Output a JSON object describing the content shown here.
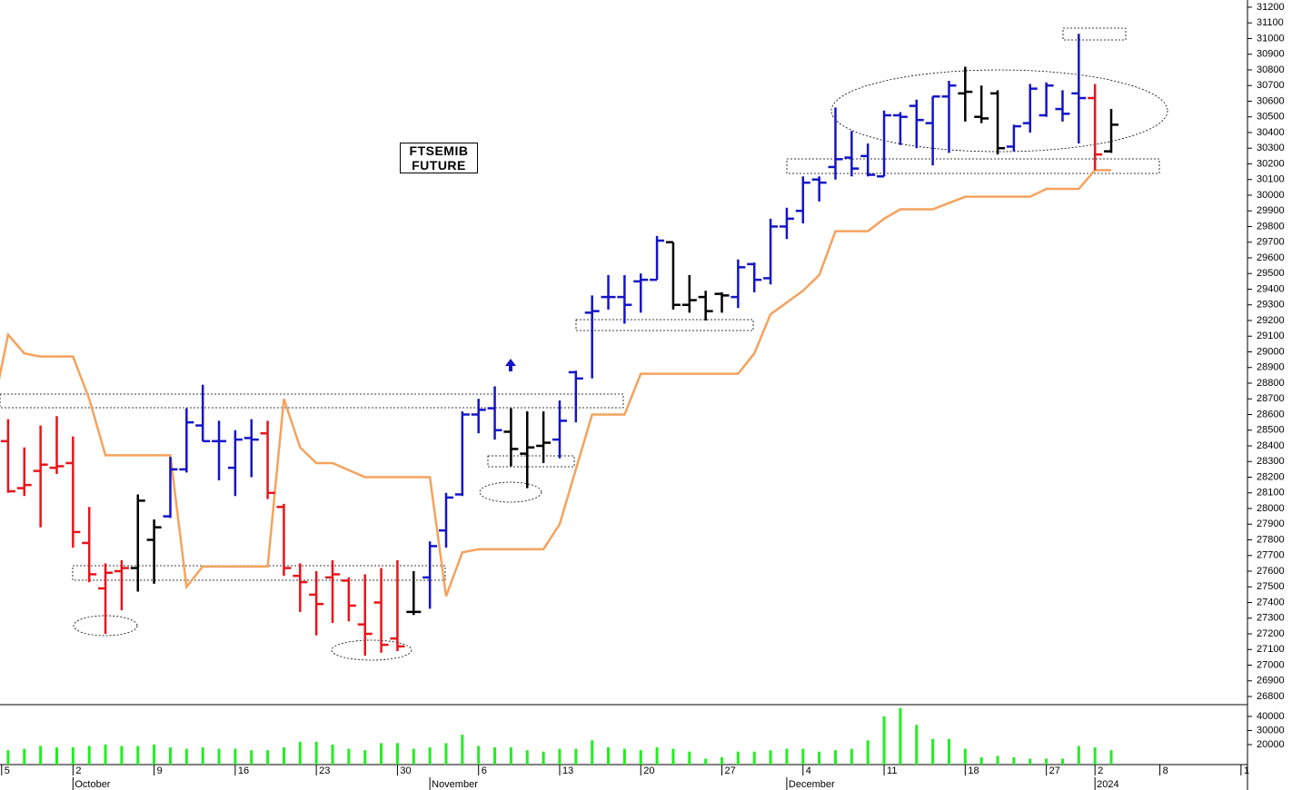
{
  "chart_data": {
    "type": "ohlc",
    "title": "FTSEMIB FUTURE",
    "x": [
      -4,
      -3,
      -2,
      -1,
      0,
      1,
      2,
      3,
      4,
      5,
      6,
      7,
      8,
      9,
      10,
      11,
      12,
      13,
      14,
      15,
      16,
      17,
      18,
      19,
      20,
      21,
      22,
      23,
      24,
      25,
      26,
      27,
      28,
      29,
      30,
      31,
      32,
      33,
      34,
      35,
      36,
      37,
      38,
      39,
      40,
      41,
      42,
      43,
      44,
      45,
      46,
      47,
      48,
      49,
      50,
      51,
      52,
      53,
      54,
      55,
      56,
      57,
      58,
      59,
      60,
      61,
      62,
      63,
      64
    ],
    "open": [
      28430,
      28130,
      28240,
      28260,
      28290,
      27780,
      27490,
      27600,
      27620,
      27800,
      27950,
      28250,
      28530,
      28430,
      28260,
      28450,
      28480,
      28010,
      27570,
      27450,
      27560,
      27540,
      27260,
      27400,
      27170,
      27340,
      27560,
      27860,
      28090,
      28600,
      28640,
      28490,
      28350,
      28400,
      28440,
      28870,
      29250,
      29350,
      29350,
      29450,
      29460,
      29700,
      29300,
      29350,
      29370,
      29350,
      29560,
      29470,
      29800,
      29900,
      30100,
      30180,
      30240,
      30250,
      30120,
      30510,
      30570,
      30460,
      30630,
      30650,
      30500,
      30650,
      30310,
      30460,
      30510,
      30550,
      30650,
      30620,
      30280
    ],
    "high": [
      28570,
      28390,
      28530,
      28590,
      28460,
      28010,
      27650,
      27670,
      28090,
      27930,
      28330,
      28640,
      28790,
      28560,
      28500,
      28570,
      28560,
      28030,
      27650,
      27600,
      27670,
      27560,
      27580,
      27620,
      27670,
      27600,
      27790,
      28100,
      28620,
      28700,
      28780,
      28640,
      28620,
      28620,
      28690,
      28880,
      29360,
      29490,
      29490,
      29500,
      29740,
      29700,
      29490,
      29390,
      29380,
      29590,
      29570,
      29850,
      29920,
      30120,
      30120,
      30560,
      30410,
      30330,
      30540,
      30530,
      30610,
      30630,
      30730,
      30820,
      30700,
      30670,
      30450,
      30710,
      30720,
      30670,
      31030,
      30710,
      30550
    ],
    "low": [
      28100,
      28080,
      27880,
      28220,
      27750,
      27530,
      27200,
      27350,
      27470,
      27520,
      27940,
      28230,
      28430,
      28180,
      28080,
      28200,
      28060,
      27570,
      27340,
      27190,
      27270,
      27280,
      27060,
      27080,
      27090,
      27320,
      27360,
      27750,
      28080,
      28480,
      28440,
      28270,
      28130,
      28290,
      28320,
      28550,
      28830,
      29270,
      29180,
      29250,
      29460,
      29270,
      29250,
      29200,
      29250,
      29280,
      29380,
      29430,
      29720,
      29820,
      29960,
      30100,
      30120,
      30120,
      30120,
      30320,
      30300,
      30190,
      30270,
      30470,
      30460,
      30260,
      30280,
      30400,
      30500,
      30470,
      30330,
      30160,
      30270
    ],
    "close": [
      28110,
      28150,
      28280,
      28270,
      27850,
      27580,
      27590,
      27620,
      28050,
      27880,
      28250,
      28550,
      28430,
      28430,
      28440,
      28440,
      28100,
      27620,
      27530,
      27390,
      27580,
      27380,
      27200,
      27130,
      27120,
      27340,
      27760,
      28070,
      28600,
      28630,
      28500,
      28380,
      28390,
      28420,
      28560,
      28830,
      29260,
      29350,
      29300,
      29460,
      29710,
      29300,
      29330,
      29260,
      29360,
      29540,
      29460,
      29800,
      29850,
      30080,
      30080,
      30230,
      30170,
      30130,
      30510,
      30500,
      30480,
      30630,
      30700,
      30660,
      30490,
      30300,
      30440,
      30680,
      30700,
      30520,
      30620,
      30260,
      30450
    ],
    "colors": [
      "#e8141b",
      "#e8141b",
      "#e8141b",
      "#e8141b",
      "#e8141b",
      "#e8141b",
      "#e8141b",
      "#e8141b",
      "#000000",
      "#000000",
      "#1414c8",
      "#1414c8",
      "#1414c8",
      "#1414c8",
      "#1414c8",
      "#1414c8",
      "#e8141b",
      "#e8141b",
      "#e8141b",
      "#e8141b",
      "#e8141b",
      "#e8141b",
      "#e8141b",
      "#e8141b",
      "#e8141b",
      "#000000",
      "#1414c8",
      "#1414c8",
      "#1414c8",
      "#1414c8",
      "#1414c8",
      "#000000",
      "#000000",
      "#000000",
      "#1414c8",
      "#1414c8",
      "#1414c8",
      "#1414c8",
      "#1414c8",
      "#1414c8",
      "#1414c8",
      "#000000",
      "#000000",
      "#000000",
      "#000000",
      "#1414c8",
      "#1414c8",
      "#1414c8",
      "#1414c8",
      "#1414c8",
      "#1414c8",
      "#1414c8",
      "#1414c8",
      "#1414c8",
      "#1414c8",
      "#1414c8",
      "#1414c8",
      "#1414c8",
      "#1414c8",
      "#000000",
      "#000000",
      "#000000",
      "#1414c8",
      "#1414c8",
      "#1414c8",
      "#1414c8",
      "#1414c8",
      "#e8141b",
      "#000000"
    ],
    "xlim": [
      -4.5,
      72.4
    ],
    "ylim": [
      26748,
      31246
    ],
    "yticks": [
      26800,
      26900,
      27000,
      27100,
      27200,
      27300,
      27400,
      27500,
      27600,
      27700,
      27800,
      27900,
      28000,
      28100,
      28200,
      28300,
      28400,
      28500,
      28600,
      28700,
      28800,
      28900,
      29000,
      29100,
      29200,
      29300,
      29400,
      29500,
      29600,
      29700,
      29800,
      29900,
      30000,
      30100,
      30200,
      30300,
      30400,
      30500,
      30600,
      30700,
      30800,
      30900,
      31000,
      31100,
      31200
    ],
    "xticks": [
      {
        "value": -4.4,
        "label": "5"
      },
      {
        "value": 0,
        "label": "2"
      },
      {
        "value": 5,
        "label": "9"
      },
      {
        "value": 10,
        "label": "16"
      },
      {
        "value": 15,
        "label": "23"
      },
      {
        "value": 20,
        "label": "30"
      },
      {
        "value": 25,
        "label": "6"
      },
      {
        "value": 30,
        "label": "13"
      },
      {
        "value": 35,
        "label": "20"
      },
      {
        "value": 40,
        "label": "27"
      },
      {
        "value": 45,
        "label": "4"
      },
      {
        "value": 50,
        "label": "11"
      },
      {
        "value": 55,
        "label": "18"
      },
      {
        "value": 60,
        "label": "27"
      },
      {
        "value": 63,
        "label": "2"
      },
      {
        "value": 67,
        "label": "8"
      },
      {
        "value": 72,
        "label": "1"
      }
    ],
    "xperiods": [
      {
        "value": 0,
        "label": "October"
      },
      {
        "value": 22,
        "label": "November"
      },
      {
        "value": 44,
        "label": "December"
      },
      {
        "value": 63,
        "label": "2024"
      }
    ],
    "overlay": {
      "type": "line",
      "color": "#f5a25d",
      "x": [
        -5,
        -4,
        -3,
        -2,
        0,
        1,
        2,
        6,
        7,
        8,
        12,
        13,
        14,
        15,
        16,
        18,
        22,
        23,
        24,
        25,
        29,
        30,
        32,
        34,
        35,
        41,
        42,
        43,
        45,
        46,
        47,
        49,
        50,
        51,
        53,
        54,
        55,
        59,
        60,
        62,
        63,
        64
      ],
      "values": [
        28600,
        29110,
        28990,
        28970,
        28970,
        28700,
        28340,
        28340,
        27500,
        27630,
        27630,
        28700,
        28390,
        28290,
        28290,
        28200,
        28200,
        27440,
        27720,
        27740,
        27740,
        27900,
        28600,
        28600,
        28860,
        28860,
        28990,
        29240,
        29390,
        29490,
        29770,
        29770,
        29850,
        29910,
        29910,
        29950,
        29990,
        29990,
        30040,
        30040,
        30160,
        30160
      ]
    },
    "volume": {
      "type": "bar",
      "color": "#22ee22",
      "values": [
        16000,
        17000,
        19000,
        18000,
        18000,
        19000,
        20000,
        19000,
        19000,
        20000,
        18000,
        17000,
        18000,
        17000,
        17000,
        16000,
        16000,
        18000,
        22000,
        22000,
        20000,
        17000,
        16000,
        21000,
        21000,
        17000,
        18000,
        21000,
        27000,
        19000,
        18000,
        18000,
        16000,
        15000,
        17000,
        17000,
        23000,
        18000,
        17000,
        16000,
        18000,
        17000,
        15000,
        10000,
        11000,
        15000,
        15000,
        16000,
        17000,
        17000,
        15000,
        16000,
        17000,
        23000,
        40000,
        46000,
        34000,
        24000,
        24000,
        17000,
        11000,
        12000,
        11000,
        10000,
        10000,
        10000,
        19000,
        18000,
        16000
      ],
      "ylim": [
        5800,
        47700
      ],
      "yticks": [
        20000,
        30000,
        40000
      ]
    }
  }
}
